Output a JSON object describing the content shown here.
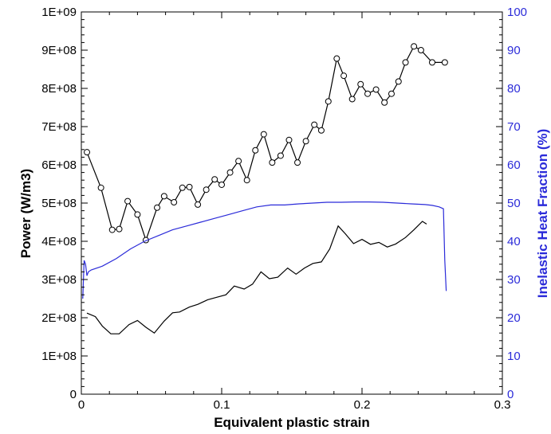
{
  "chart_data": {
    "type": "line",
    "title": "",
    "xlabel": "Equivalent plastic strain",
    "ylabel": "Power (W/m3)",
    "y2label": "Inelastic Heat Fraction (%)",
    "xlim": [
      0,
      0.3
    ],
    "ylim": [
      0,
      1000000000
    ],
    "y2lim": [
      0,
      100
    ],
    "grid": false,
    "x_tick_values": [
      0,
      0.1,
      0.2,
      0.3
    ],
    "x_tick_labels": [
      "0",
      "0.1",
      "0.2",
      "0.3"
    ],
    "y_tick_values": [
      0,
      100000000,
      200000000,
      300000000,
      400000000,
      500000000,
      600000000,
      700000000,
      800000000,
      900000000,
      1000000000
    ],
    "y_tick_labels": [
      "0",
      "1E+08",
      "2E+08",
      "3E+08",
      "4E+08",
      "5E+08",
      "6E+08",
      "7E+08",
      "8E+08",
      "9E+08",
      "1E+09"
    ],
    "y2_tick_values": [
      0,
      10,
      20,
      30,
      40,
      50,
      60,
      70,
      80,
      90,
      100
    ],
    "y2_tick_labels": [
      "0",
      "10",
      "20",
      "30",
      "40",
      "50",
      "60",
      "70",
      "80",
      "90",
      "100"
    ],
    "colors": {
      "power": "#000000",
      "heat_fraction": "#2b2bd9"
    },
    "series": [
      {
        "axis": "left",
        "color": "#000000",
        "marker": "circle",
        "x": [
          0.004,
          0.014,
          0.022,
          0.027,
          0.033,
          0.04,
          0.046,
          0.054,
          0.059,
          0.066,
          0.072,
          0.077,
          0.083,
          0.089,
          0.095,
          0.1,
          0.106,
          0.112,
          0.118,
          0.124,
          0.13,
          0.136,
          0.142,
          0.148,
          0.154,
          0.16,
          0.166,
          0.171,
          0.176,
          0.182,
          0.187,
          0.193,
          0.199,
          0.204,
          0.21,
          0.216,
          0.221,
          0.226,
          0.231,
          0.237,
          0.242,
          0.25,
          0.259
        ],
        "y": [
          633000000,
          540000000,
          430000000,
          432000000,
          505000000,
          470000000,
          403000000,
          488000000,
          518000000,
          502000000,
          540000000,
          542000000,
          496000000,
          535000000,
          562000000,
          548000000,
          580000000,
          610000000,
          560000000,
          638000000,
          680000000,
          606000000,
          624000000,
          665000000,
          606000000,
          662000000,
          705000000,
          690000000,
          766000000,
          878000000,
          833000000,
          772000000,
          811000000,
          786000000,
          797000000,
          763000000,
          786000000,
          818000000,
          868000000,
          910000000,
          900000000,
          868000000,
          868000000
        ]
      },
      {
        "axis": "left",
        "color": "#000000",
        "marker": "none",
        "x": [
          0.004,
          0.01,
          0.015,
          0.021,
          0.027,
          0.034,
          0.04,
          0.046,
          0.052,
          0.059,
          0.065,
          0.07,
          0.077,
          0.083,
          0.09,
          0.097,
          0.103,
          0.109,
          0.116,
          0.122,
          0.128,
          0.134,
          0.14,
          0.147,
          0.153,
          0.159,
          0.165,
          0.171,
          0.177,
          0.183,
          0.188,
          0.194,
          0.2,
          0.206,
          0.212,
          0.218,
          0.224,
          0.231,
          0.237,
          0.243,
          0.246
        ],
        "y": [
          212000000,
          203000000,
          178000000,
          158000000,
          158000000,
          182000000,
          193000000,
          175000000,
          160000000,
          191000000,
          213000000,
          215000000,
          228000000,
          235000000,
          247000000,
          254000000,
          260000000,
          283000000,
          275000000,
          288000000,
          320000000,
          302000000,
          306000000,
          330000000,
          314000000,
          330000000,
          342000000,
          346000000,
          380000000,
          440000000,
          420000000,
          394000000,
          405000000,
          392000000,
          397000000,
          385000000,
          393000000,
          410000000,
          430000000,
          452000000,
          445000000
        ]
      },
      {
        "axis": "right",
        "color": "#2b2bd9",
        "marker": "none",
        "x": [
          0.001,
          0.002,
          0.003,
          0.004,
          0.005,
          0.007,
          0.015,
          0.025,
          0.035,
          0.045,
          0.055,
          0.065,
          0.075,
          0.085,
          0.095,
          0.105,
          0.115,
          0.125,
          0.135,
          0.145,
          0.155,
          0.165,
          0.175,
          0.185,
          0.195,
          0.205,
          0.215,
          0.225,
          0.235,
          0.245,
          0.25,
          0.255,
          0.258,
          0.259,
          0.26
        ],
        "y": [
          25,
          35,
          34,
          31,
          32,
          32.5,
          33.5,
          35.5,
          38,
          40,
          41.5,
          43,
          44,
          45,
          46,
          47,
          48,
          49,
          49.5,
          49.5,
          49.8,
          50,
          50.2,
          50.2,
          50.3,
          50.3,
          50.2,
          50,
          49.8,
          49.6,
          49.4,
          49,
          48.5,
          35,
          27
        ]
      }
    ]
  }
}
